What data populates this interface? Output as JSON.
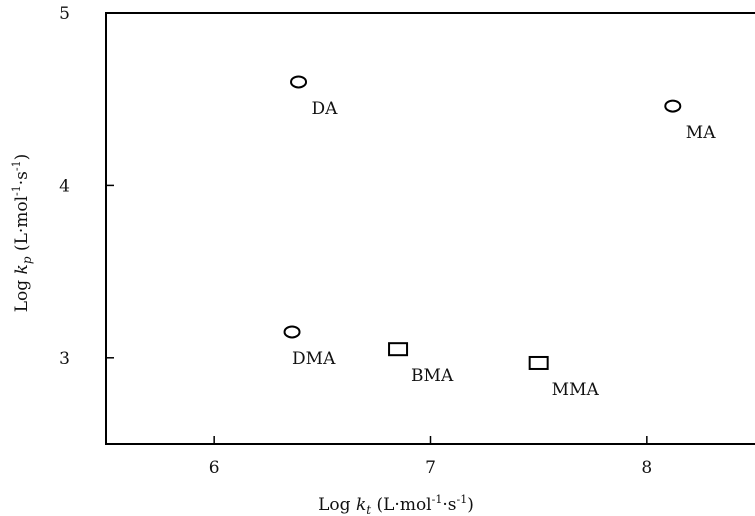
{
  "chart_data": {
    "type": "scatter",
    "title": "",
    "xlabel": "Log k_t (L·mol⁻¹·s⁻¹)",
    "ylabel": "Log k_p (L·mol⁻¹·s⁻¹)",
    "xlabel_parts": {
      "pre": "Log ",
      "var": "k",
      "sub": "t",
      "units": " (L·mol",
      "sup1": "-1",
      "mid": "·s",
      "sup2": "-1",
      "end": ")"
    },
    "ylabel_parts": {
      "pre": "Log ",
      "var": "k",
      "sub": "p",
      "units": " (L·mol",
      "sup1": "-1",
      "mid": "·s",
      "sup2": "-1",
      "end": ")"
    },
    "xlim": [
      5.5,
      8.5
    ],
    "ylim": [
      2.5,
      5.0
    ],
    "x_ticks": [
      6,
      7,
      8
    ],
    "y_ticks": [
      3,
      4,
      5
    ],
    "x_tick_labels": [
      "6",
      "7",
      "8"
    ],
    "y_tick_labels": [
      "3",
      "4",
      "5"
    ],
    "grid": false,
    "legend": "none",
    "points": [
      {
        "label": "DA",
        "x": 6.39,
        "y": 4.6,
        "marker": "ellipse"
      },
      {
        "label": "MA",
        "x": 8.12,
        "y": 4.46,
        "marker": "ellipse"
      },
      {
        "label": "DMA",
        "x": 6.36,
        "y": 3.15,
        "marker": "ellipse"
      },
      {
        "label": "BMA",
        "x": 6.85,
        "y": 3.05,
        "marker": "square"
      },
      {
        "label": "MMA",
        "x": 7.5,
        "y": 2.97,
        "marker": "square"
      }
    ]
  }
}
